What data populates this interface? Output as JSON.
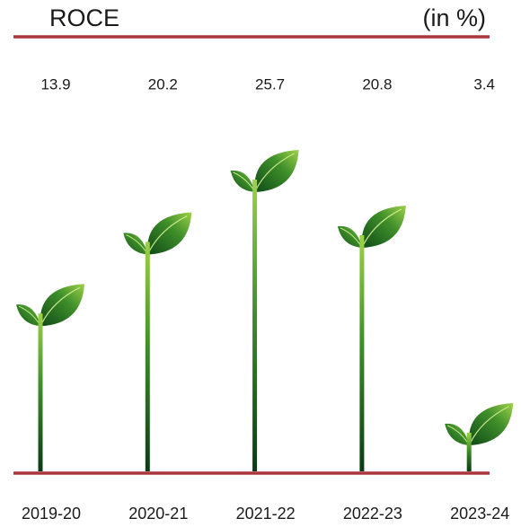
{
  "chart_data": {
    "type": "bar",
    "title": "ROCE",
    "subtitle": "(in %)",
    "categories": [
      "2019-20",
      "2020-21",
      "2021-22",
      "2022-23",
      "2023-24"
    ],
    "values": [
      13.9,
      20.2,
      25.7,
      20.8,
      3.4
    ],
    "color": "#3f8f2a",
    "rule_color": "#a8373a"
  }
}
